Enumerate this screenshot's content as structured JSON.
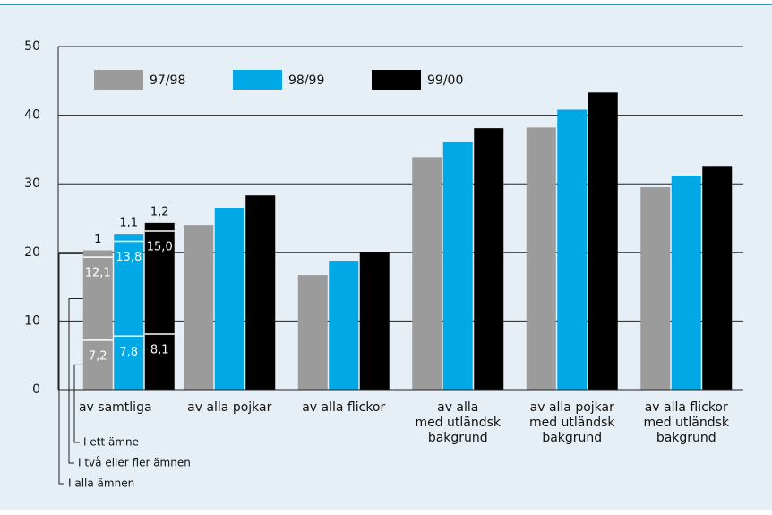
{
  "chart_data": {
    "type": "bar",
    "categories": [
      "av samtliga",
      "av alla pojkar",
      "av alla flickor",
      "av alla\nmed utländsk\nbakgrund",
      "av alla pojkar\nmed utländsk\nbakgrund",
      "av alla flickor\nmed utländsk\nbakgrund"
    ],
    "series": [
      {
        "name": "97/98",
        "color": "#9b9b9b",
        "values": [
          null,
          24.0,
          16.7,
          33.9,
          38.2,
          29.5
        ]
      },
      {
        "name": "98/99",
        "color": "#00a9e6",
        "values": [
          null,
          26.5,
          18.8,
          36.1,
          40.8,
          31.2
        ]
      },
      {
        "name": "99/00",
        "color": "#000000",
        "values": [
          null,
          28.3,
          20.1,
          38.1,
          43.3,
          32.6
        ]
      }
    ],
    "stacked_first_category": [
      {
        "name": "I ett ämne",
        "values": [
          7.2,
          7.8,
          8.1
        ],
        "value_labels": [
          "7,2",
          "7,8",
          "8,1"
        ]
      },
      {
        "name": "I två eller fler ämnen",
        "values": [
          12.1,
          13.8,
          15.0
        ],
        "value_labels": [
          "12,1",
          "13,8",
          "15,0"
        ]
      },
      {
        "name": "I alla ämnen",
        "values": [
          1,
          1.1,
          1.2
        ],
        "value_labels": [
          "1",
          "1,1",
          "1,2"
        ]
      }
    ],
    "ylim": [
      0,
      50
    ],
    "yticks": [
      0,
      10,
      20,
      30,
      40,
      50
    ],
    "grid": true,
    "legend": "upper left"
  }
}
